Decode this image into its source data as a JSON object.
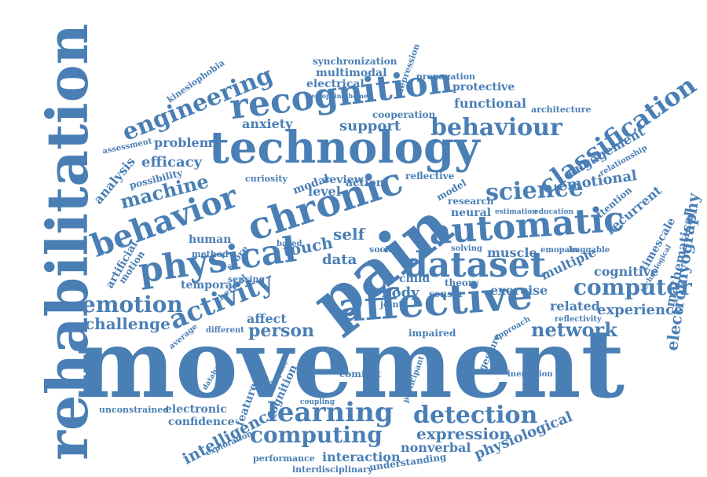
{
  "word_cloud": {
    "color": "#4a7fb5",
    "words": [
      "rehabilitation",
      "movement",
      "pain",
      "technology",
      "chronic",
      "affective",
      "recognition",
      "automatic",
      "physical",
      "dataset",
      "behavior",
      "behaviour",
      "learning",
      "classification",
      "computer",
      "activity",
      "detection",
      "emotion",
      "computing",
      "engineering",
      "science",
      "machine",
      "network",
      "electromyography",
      "person",
      "expression",
      "challenge",
      "interaction",
      "intelligence",
      "touch",
      "experience",
      "emotional",
      "engagement",
      "physiological",
      "mathematical",
      "timescale",
      "recurrent",
      "cognitive",
      "multiple",
      "exercise",
      "muscle",
      "related",
      "reflectivity",
      "affect",
      "comfort",
      "nonverbal",
      "understanding",
      "interdisciplinary",
      "performance",
      "exploration",
      "confidence",
      "electronic",
      "unconstrained",
      "feature",
      "cognition",
      "body",
      "self",
      "data",
      "level",
      "neural",
      "research",
      "functional",
      "protective",
      "architecture",
      "support",
      "anxiety",
      "efficacy",
      "problem",
      "possibility",
      "analysis",
      "artificial",
      "motion",
      "temporal",
      "human",
      "synchronization",
      "multimodal",
      "electrical",
      "propagation",
      "depression",
      "kinesiophobia",
      "assessment",
      "attention",
      "relationship",
      "cooperation",
      "review",
      "action",
      "modal",
      "curiosity",
      "reflective",
      "child",
      "sensor",
      "theory",
      "gesture",
      "participant",
      "approach",
      "impaired",
      "joint",
      "average",
      "different",
      "database",
      "coupling",
      "ineraction",
      "workspace",
      "solving",
      "emopain",
      "huggable",
      "education",
      "estimation",
      "model",
      "technological",
      "score",
      "sensing",
      "thermal",
      "method",
      "based",
      "social",
      "emopainathome"
    ]
  }
}
